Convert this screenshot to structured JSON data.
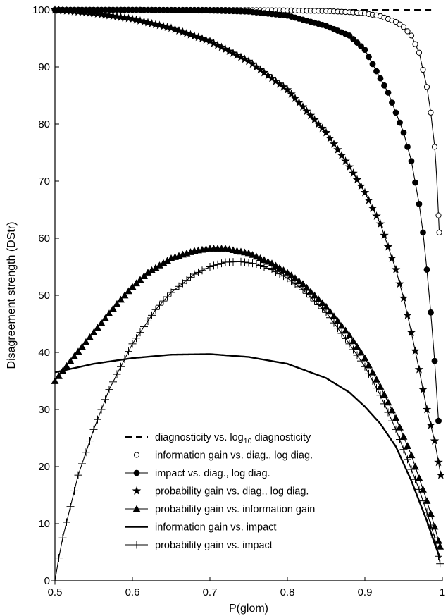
{
  "chart_data": {
    "type": "line",
    "title": "",
    "xlabel": "P(glom)",
    "ylabel": "Disagreement strength (DStr)",
    "xlim": [
      0.5,
      1.0
    ],
    "ylim": [
      0,
      100
    ],
    "xticks": [
      "0.5",
      "0.6",
      "0.7",
      "0.8",
      "0.9",
      "1"
    ],
    "yticks": [
      "0",
      "10",
      "20",
      "30",
      "40",
      "50",
      "60",
      "70",
      "80",
      "90",
      "100"
    ],
    "grid": false,
    "legend_position": "lower-center",
    "series": [
      {
        "name": "diagnosticity vs. log",
        "name_sub": "10",
        "name_tail": " diagnosticity",
        "marker": "dashed-line",
        "x": [
          0.5,
          0.6,
          0.7,
          0.8,
          0.9,
          0.95,
          0.99
        ],
        "y": [
          100,
          100,
          100,
          100,
          100,
          100,
          100
        ]
      },
      {
        "name": "information gain vs. diag., log diag.",
        "marker": "open-circle",
        "x": [
          0.5,
          0.6,
          0.7,
          0.8,
          0.85,
          0.88,
          0.9,
          0.92,
          0.94,
          0.95,
          0.96,
          0.97,
          0.98,
          0.985,
          0.99,
          0.993,
          0.996
        ],
        "y": [
          100,
          100,
          100,
          99.9,
          99.8,
          99.6,
          99.4,
          98.9,
          97.9,
          97.0,
          95.5,
          92.5,
          86.5,
          82.0,
          76.0,
          70.0,
          61.0
        ]
      },
      {
        "name": "impact vs. diag., log diag.",
        "marker": "filled-circle",
        "x": [
          0.5,
          0.6,
          0.7,
          0.75,
          0.8,
          0.85,
          0.88,
          0.9,
          0.92,
          0.93,
          0.94,
          0.95,
          0.96,
          0.97,
          0.975,
          0.98,
          0.985,
          0.99,
          0.995
        ],
        "y": [
          100,
          100,
          99.9,
          99.7,
          99.0,
          97.2,
          95.5,
          93.0,
          88.0,
          85.5,
          82.0,
          78.5,
          73.5,
          66.0,
          61.0,
          54.5,
          47.0,
          38.5,
          28.0
        ]
      },
      {
        "name": "probability gain vs. diag., log diag.",
        "marker": "star",
        "x": [
          0.5,
          0.55,
          0.6,
          0.65,
          0.7,
          0.75,
          0.8,
          0.85,
          0.88,
          0.9,
          0.92,
          0.94,
          0.95,
          0.96,
          0.97,
          0.98,
          0.99,
          0.998
        ],
        "y": [
          100,
          99.4,
          98.4,
          96.8,
          94.5,
          91.0,
          86.0,
          78.5,
          72.5,
          68.0,
          62.5,
          54.5,
          49.5,
          43.5,
          37.0,
          30.0,
          24.5,
          18.5
        ]
      },
      {
        "name": "probability gain vs. information gain",
        "marker": "filled-triangle",
        "x": [
          0.5,
          0.52,
          0.55,
          0.58,
          0.6,
          0.62,
          0.65,
          0.68,
          0.7,
          0.72,
          0.75,
          0.78,
          0.8,
          0.82,
          0.85,
          0.88,
          0.9,
          0.92,
          0.94,
          0.96,
          0.97,
          0.98,
          0.99,
          0.997
        ],
        "y": [
          35.0,
          38.5,
          43.5,
          48.5,
          51.5,
          54.0,
          56.5,
          57.8,
          58.2,
          58.2,
          57.4,
          55.6,
          54.0,
          52.0,
          48.0,
          43.0,
          39.0,
          34.0,
          28.5,
          22.0,
          18.0,
          14.0,
          9.5,
          6.0
        ]
      },
      {
        "name": "information gain vs. impact",
        "marker": "solid-line",
        "x": [
          0.5,
          0.55,
          0.6,
          0.65,
          0.7,
          0.75,
          0.8,
          0.85,
          0.88,
          0.9,
          0.92,
          0.94,
          0.96,
          0.97,
          0.98,
          0.99,
          0.997
        ],
        "y": [
          36.5,
          38.0,
          39.0,
          39.6,
          39.7,
          39.2,
          38.0,
          35.5,
          33.0,
          30.5,
          27.5,
          23.5,
          17.5,
          14.0,
          10.5,
          6.5,
          4.0
        ]
      },
      {
        "name": "probability gain vs. impact",
        "marker": "plus",
        "x": [
          0.5,
          0.505,
          0.51,
          0.52,
          0.53,
          0.55,
          0.57,
          0.6,
          0.63,
          0.65,
          0.68,
          0.7,
          0.72,
          0.74,
          0.76,
          0.78,
          0.8,
          0.82,
          0.85,
          0.88,
          0.9,
          0.92,
          0.94,
          0.96,
          0.97,
          0.98,
          0.99,
          0.997
        ],
        "y": [
          0,
          4.0,
          7.5,
          13.0,
          18.5,
          26.5,
          33.5,
          41.5,
          47.5,
          50.5,
          53.7,
          55.0,
          55.8,
          55.9,
          55.5,
          54.5,
          53.0,
          51.0,
          47.0,
          41.5,
          37.5,
          32.5,
          26.5,
          19.5,
          16.0,
          12.0,
          7.5,
          3.0
        ]
      }
    ]
  }
}
